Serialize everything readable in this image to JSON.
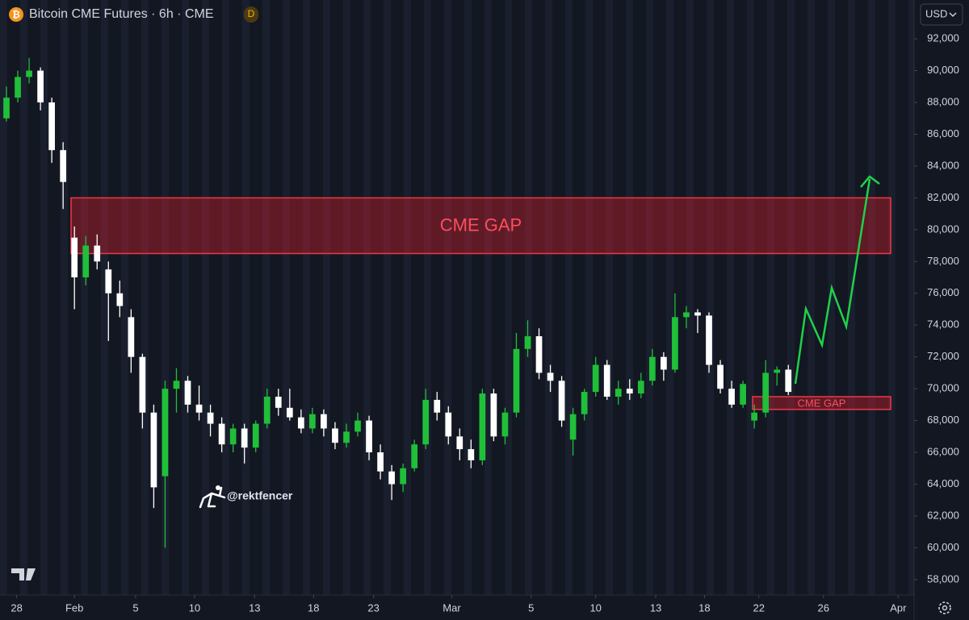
{
  "chart_data": {
    "type": "candlestick",
    "title": "Bitcoin CME Futures · 6h · CME",
    "badge": "D",
    "currency": "USD",
    "watermark": "@rektfencer",
    "up_color": "#1fbf3a",
    "down_color": "#ffffff",
    "ylim": [
      57030,
      94440
    ],
    "yticks": [
      {
        "value": 58000,
        "label": "58,000"
      },
      {
        "value": 60000,
        "label": "60,000"
      },
      {
        "value": 62000,
        "label": "62,000"
      },
      {
        "value": 64000,
        "label": "64,000"
      },
      {
        "value": 66000,
        "label": "66,000"
      },
      {
        "value": 68000,
        "label": "68,000"
      },
      {
        "value": 70000,
        "label": "70,000"
      },
      {
        "value": 72000,
        "label": "72,000"
      },
      {
        "value": 74000,
        "label": "74,000"
      },
      {
        "value": 76000,
        "label": "76,000"
      },
      {
        "value": 78000,
        "label": "78,000"
      },
      {
        "value": 80000,
        "label": "80,000"
      },
      {
        "value": 82000,
        "label": "82,000"
      },
      {
        "value": 84000,
        "label": "84,000"
      },
      {
        "value": 86000,
        "label": "86,000"
      },
      {
        "value": 88000,
        "label": "88,000"
      },
      {
        "value": 90000,
        "label": "90,000"
      },
      {
        "value": 92000,
        "label": "92,000"
      }
    ],
    "xlim": [
      -0.57,
      80.1
    ],
    "xticks": [
      {
        "value": 0.9,
        "label": "28"
      },
      {
        "value": 6,
        "label": "Feb"
      },
      {
        "value": 11.4,
        "label": "5"
      },
      {
        "value": 16.6,
        "label": "10"
      },
      {
        "value": 21.9,
        "label": "13"
      },
      {
        "value": 27.1,
        "label": "18"
      },
      {
        "value": 32.4,
        "label": "23"
      },
      {
        "value": 39.3,
        "label": "Mar"
      },
      {
        "value": 46.3,
        "label": "5"
      },
      {
        "value": 52,
        "label": "10"
      },
      {
        "value": 57.3,
        "label": "13"
      },
      {
        "value": 61.6,
        "label": "18"
      },
      {
        "value": 66.4,
        "label": "22"
      },
      {
        "value": 72.1,
        "label": "26"
      },
      {
        "value": 78.7,
        "label": "Apr"
      }
    ],
    "open": [
      87000,
      88300,
      89600,
      90000,
      88000,
      85000,
      79500,
      77000,
      79000,
      77500,
      76000,
      74500,
      72000,
      68500,
      64500,
      70000,
      70500,
      69000,
      68500,
      67800,
      66500,
      67500,
      66300,
      67800,
      69500,
      68800,
      68200,
      67500,
      68400,
      67500,
      66600,
      67300,
      68000,
      66000,
      64800,
      64000,
      65000,
      66500,
      69300,
      68500,
      67000,
      66200,
      65500,
      69700,
      67000,
      68500,
      72500,
      73300,
      71000,
      70500,
      66800,
      68400,
      69800,
      71500,
      69500,
      70000,
      69700,
      70500,
      72000,
      71200,
      74500,
      74800,
      74600,
      71500,
      70000,
      69000,
      68000,
      68500,
      71000,
      71200
    ],
    "high": [
      89000,
      90000,
      90800,
      90200,
      88300,
      85500,
      80200,
      79600,
      79700,
      78000,
      76800,
      75000,
      72200,
      69000,
      70500,
      71300,
      70800,
      70200,
      69000,
      68200,
      67800,
      67800,
      68000,
      70000,
      70000,
      70000,
      68700,
      68800,
      68700,
      67900,
      67800,
      68500,
      68300,
      66500,
      65200,
      65300,
      66800,
      70000,
      69800,
      68900,
      67500,
      66800,
      70000,
      70000,
      68800,
      73500,
      74300,
      73800,
      71500,
      70800,
      68800,
      70000,
      72000,
      71800,
      70500,
      70600,
      71000,
      72500,
      72300,
      76000,
      75200,
      75000,
      74800,
      71800,
      70500,
      70500,
      69000,
      71800,
      71400,
      71500
    ],
    "low": [
      86800,
      88000,
      89200,
      87500,
      84200,
      81300,
      75000,
      76500,
      77500,
      73000,
      74500,
      71000,
      67500,
      62500,
      60000,
      68500,
      68500,
      68000,
      67000,
      66000,
      66000,
      65300,
      66000,
      67500,
      68300,
      68000,
      67200,
      67200,
      67000,
      66200,
      66300,
      67000,
      65500,
      64300,
      63000,
      63500,
      64800,
      66200,
      68000,
      66500,
      65500,
      65000,
      65200,
      66700,
      66500,
      68200,
      72000,
      70600,
      69800,
      67600,
      65800,
      68000,
      69500,
      69300,
      69000,
      69300,
      69400,
      70200,
      70500,
      71000,
      73800,
      73500,
      71000,
      69700,
      68800,
      68800,
      67500,
      68200,
      70200,
      69600
    ],
    "close": [
      88300,
      89600,
      90000,
      88000,
      85000,
      83000,
      77000,
      79000,
      78000,
      76000,
      75200,
      72000,
      68500,
      63800,
      70000,
      70500,
      69000,
      68500,
      67800,
      66500,
      67500,
      66300,
      67800,
      69500,
      68800,
      68200,
      67500,
      68400,
      67500,
      66600,
      67300,
      68000,
      66000,
      64800,
      64000,
      65000,
      66500,
      69300,
      68500,
      67000,
      66200,
      65500,
      69700,
      67000,
      68500,
      72500,
      73300,
      71000,
      70500,
      68000,
      68400,
      69800,
      71500,
      69500,
      70000,
      69700,
      70500,
      72000,
      71200,
      74500,
      74800,
      74600,
      71500,
      70000,
      69000,
      70300,
      68500,
      71000,
      71200,
      69800
    ],
    "zones": [
      {
        "label": "CME GAP",
        "range": [
          78500,
          82000
        ]
      },
      {
        "label": "CME GAP",
        "range": [
          68700,
          69500
        ]
      }
    ]
  }
}
